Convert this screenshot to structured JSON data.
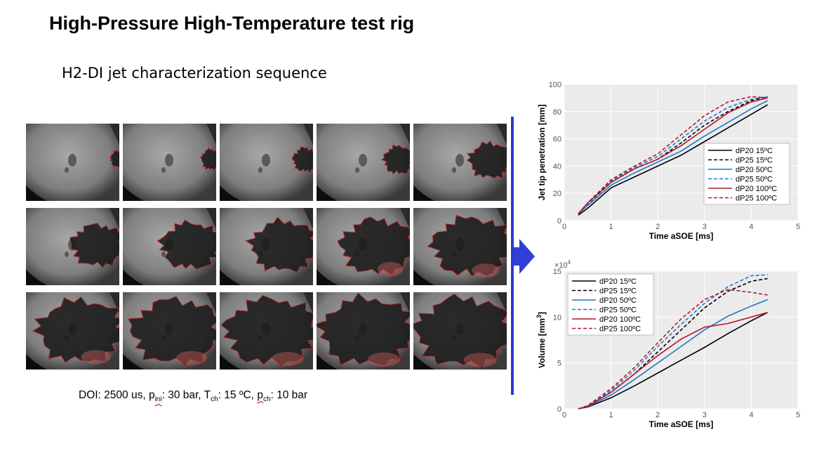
{
  "slide": {
    "title": "High-Pressure High-Temperature test rig",
    "subtitle": "H2-DI jet characterization sequence",
    "caption": {
      "doi": "DOI: 2500 us, ",
      "p_ini_main": "p",
      "p_ini_sub": "ini",
      "p_ini_value": ": 30 bar, ",
      "t_ch_main": "T",
      "t_ch_sub": "ch",
      "t_ch_value": ": 15 ºC, ",
      "p_ch_main": "p",
      "p_ch_sub": "ch",
      "p_ch_value": ": 10 bar"
    },
    "sequence": {
      "rows": 3,
      "cols": 5,
      "frame_count": 15,
      "jet_growth": [
        0.05,
        0.12,
        0.18,
        0.25,
        0.38,
        0.5,
        0.58,
        0.66,
        0.74,
        0.8,
        0.88,
        0.92,
        0.95,
        0.97,
        0.99
      ]
    },
    "colors": {
      "divider": "#2b3bd2",
      "arrow": "#2f3fd8",
      "contour": "#e02020"
    }
  },
  "chart_data": [
    {
      "type": "line",
      "title": "",
      "xlabel": "Time aSOE [ms]",
      "ylabel": "Jet tip penetration [mm]",
      "xlim": [
        0,
        5
      ],
      "ylim": [
        0,
        100
      ],
      "xticks": [
        "0",
        "1",
        "2",
        "3",
        "4",
        "5"
      ],
      "yticks": [
        "0",
        "20",
        "40",
        "60",
        "80",
        "100"
      ],
      "grid": true,
      "legend": "center-right",
      "series": [
        {
          "name": "dP20 15ºC",
          "color": "#000000",
          "dash": false,
          "x": [
            0.3,
            0.5,
            1.0,
            1.5,
            2.0,
            2.5,
            3.0,
            3.5,
            4.0,
            4.35
          ],
          "values": [
            4,
            9,
            24,
            32,
            40,
            48,
            58,
            68,
            78,
            85
          ]
        },
        {
          "name": "dP25 15ºC",
          "color": "#000000",
          "dash": true,
          "x": [
            0.3,
            0.5,
            1.0,
            1.5,
            2.0,
            2.5,
            3.0,
            3.5,
            4.0,
            4.35
          ],
          "values": [
            5,
            12,
            28,
            38,
            45,
            57,
            70,
            80,
            88,
            91
          ]
        },
        {
          "name": "dP20 50ºC",
          "color": "#1f77c9",
          "dash": false,
          "x": [
            0.3,
            0.5,
            1.0,
            1.5,
            2.0,
            2.5,
            3.0,
            3.5,
            4.0,
            4.35
          ],
          "values": [
            5,
            11,
            26,
            35,
            43,
            51,
            62,
            72,
            82,
            88
          ]
        },
        {
          "name": "dP25 50ºC",
          "color": "#1f77c9",
          "dash": true,
          "x": [
            0.3,
            0.5,
            1.0,
            1.5,
            2.0,
            2.5,
            3.0,
            3.5,
            4.0,
            4.35
          ],
          "values": [
            5,
            12,
            29,
            39,
            47,
            60,
            73,
            83,
            89,
            91
          ]
        },
        {
          "name": "dP20 100ºC",
          "color": "#b2182b",
          "dash": false,
          "x": [
            0.3,
            0.5,
            1.0,
            1.5,
            2.0,
            2.5,
            3.0,
            3.5,
            4.0,
            4.35
          ],
          "values": [
            5,
            13,
            28,
            38,
            45,
            55,
            67,
            79,
            87,
            90
          ]
        },
        {
          "name": "dP25 100ºC",
          "color": "#b2182b",
          "dash": true,
          "x": [
            0.3,
            0.5,
            1.0,
            1.5,
            2.0,
            2.5,
            3.0,
            3.5,
            4.0,
            4.35
          ],
          "values": [
            5,
            13,
            30,
            40,
            49,
            63,
            77,
            87,
            91,
            90
          ]
        }
      ]
    },
    {
      "type": "line",
      "title": "",
      "xlabel": "Time aSOE [ms]",
      "ylabel_main": "Volume [mm",
      "ylabel_sup": "3",
      "ylabel_end": "]",
      "exponent_base": "×10",
      "exponent_power": "4",
      "xlim": [
        0,
        5
      ],
      "ylim": [
        0,
        15
      ],
      "xticks": [
        "0",
        "1",
        "2",
        "3",
        "4",
        "5"
      ],
      "yticks": [
        "0",
        "5",
        "10",
        "15"
      ],
      "grid": true,
      "legend": "top-left",
      "series": [
        {
          "name": "dP20 15ºC",
          "color": "#000000",
          "dash": false,
          "x": [
            0.3,
            0.5,
            1.0,
            1.5,
            2.0,
            2.5,
            3.0,
            3.5,
            4.0,
            4.35
          ],
          "values": [
            0,
            0.2,
            1.2,
            2.5,
            3.9,
            5.3,
            6.7,
            8.2,
            9.6,
            10.5
          ]
        },
        {
          "name": "dP25 15ºC",
          "color": "#000000",
          "dash": true,
          "x": [
            0.3,
            0.5,
            1.0,
            1.5,
            2.0,
            2.5,
            3.0,
            3.5,
            4.0,
            4.35
          ],
          "values": [
            0,
            0.3,
            1.8,
            3.8,
            6.2,
            8.6,
            11.0,
            12.8,
            13.9,
            14.2
          ]
        },
        {
          "name": "dP20 50ºC",
          "color": "#1f77c9",
          "dash": false,
          "x": [
            0.3,
            0.5,
            1.0,
            1.5,
            2.0,
            2.5,
            3.0,
            3.5,
            4.0,
            4.35
          ],
          "values": [
            0,
            0.25,
            1.5,
            3.2,
            5.0,
            6.8,
            8.6,
            10.1,
            11.2,
            11.9
          ]
        },
        {
          "name": "dP25 50ºC",
          "color": "#1f77c9",
          "dash": true,
          "x": [
            0.3,
            0.5,
            1.0,
            1.5,
            2.0,
            2.5,
            3.0,
            3.5,
            4.0,
            4.35
          ],
          "values": [
            0,
            0.3,
            2.0,
            4.2,
            6.8,
            9.2,
            11.5,
            13.3,
            14.5,
            14.6
          ]
        },
        {
          "name": "dP20 100ºC",
          "color": "#b2182b",
          "dash": false,
          "x": [
            0.3,
            0.5,
            1.0,
            1.5,
            2.0,
            2.5,
            3.0,
            3.5,
            4.0,
            4.35
          ],
          "values": [
            0,
            0.3,
            1.8,
            3.8,
            5.8,
            7.6,
            8.9,
            9.3,
            10.0,
            10.5
          ]
        },
        {
          "name": "dP25 100ºC",
          "color": "#b2182b",
          "dash": true,
          "x": [
            0.3,
            0.5,
            1.0,
            1.5,
            2.0,
            2.5,
            3.0,
            3.5,
            4.0,
            4.35
          ],
          "values": [
            0,
            0.35,
            2.2,
            4.5,
            7.2,
            9.8,
            11.9,
            13.0,
            12.7,
            12.4
          ]
        }
      ]
    }
  ]
}
